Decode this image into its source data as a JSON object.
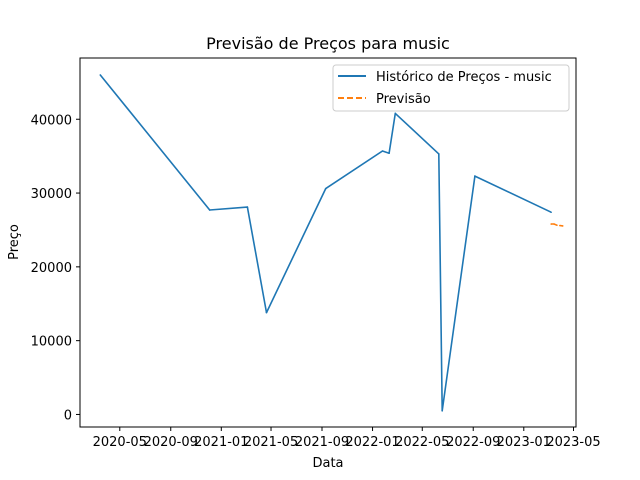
{
  "chart_data": {
    "type": "line",
    "title": "Previsão de Preços para music",
    "xlabel": "Data",
    "ylabel": "Preço",
    "x_type": "date",
    "xlim": [
      "2020-01-26",
      "2023-05-07"
    ],
    "ylim": [
      -1700,
      48300
    ],
    "x_ticks": [
      {
        "value": "2020-05-01",
        "label": "2020-05"
      },
      {
        "value": "2020-09-01",
        "label": "2020-09"
      },
      {
        "value": "2021-01-01",
        "label": "2021-01"
      },
      {
        "value": "2021-05-01",
        "label": "2021-05"
      },
      {
        "value": "2021-09-01",
        "label": "2021-09"
      },
      {
        "value": "2022-01-01",
        "label": "2022-01"
      },
      {
        "value": "2022-05-01",
        "label": "2022-05"
      },
      {
        "value": "2022-09-01",
        "label": "2022-09"
      },
      {
        "value": "2023-01-01",
        "label": "2023-01"
      },
      {
        "value": "2023-05-01",
        "label": "2023-05"
      }
    ],
    "y_ticks": [
      {
        "value": 0,
        "label": "0"
      },
      {
        "value": 10000,
        "label": "10000"
      },
      {
        "value": 20000,
        "label": "20000"
      },
      {
        "value": 30000,
        "label": "30000"
      },
      {
        "value": 40000,
        "label": "40000"
      }
    ],
    "grid": false,
    "legend_position": "top-right",
    "series": [
      {
        "name": "Histórico de Preços - music",
        "color": "#1f77b4",
        "style": "solid",
        "points": [
          {
            "x": "2020-03-15",
            "y": 46000
          },
          {
            "x": "2020-12-04",
            "y": 27700
          },
          {
            "x": "2021-03-05",
            "y": 28100
          },
          {
            "x": "2021-04-20",
            "y": 13800
          },
          {
            "x": "2021-09-10",
            "y": 30600
          },
          {
            "x": "2022-01-25",
            "y": 35700
          },
          {
            "x": "2022-02-10",
            "y": 35400
          },
          {
            "x": "2022-02-25",
            "y": 40800
          },
          {
            "x": "2022-06-10",
            "y": 35300
          },
          {
            "x": "2022-06-18",
            "y": 500
          },
          {
            "x": "2022-09-05",
            "y": 32300
          },
          {
            "x": "2023-03-08",
            "y": 27400
          }
        ]
      },
      {
        "name": "Previsão",
        "color": "#ff7f0e",
        "style": "dashed",
        "points": [
          {
            "x": "2023-03-08",
            "y": 25800
          },
          {
            "x": "2023-03-15",
            "y": 25800
          },
          {
            "x": "2023-03-22",
            "y": 25650
          },
          {
            "x": "2023-03-29",
            "y": 25600
          },
          {
            "x": "2023-04-05",
            "y": 25550
          }
        ]
      }
    ]
  }
}
